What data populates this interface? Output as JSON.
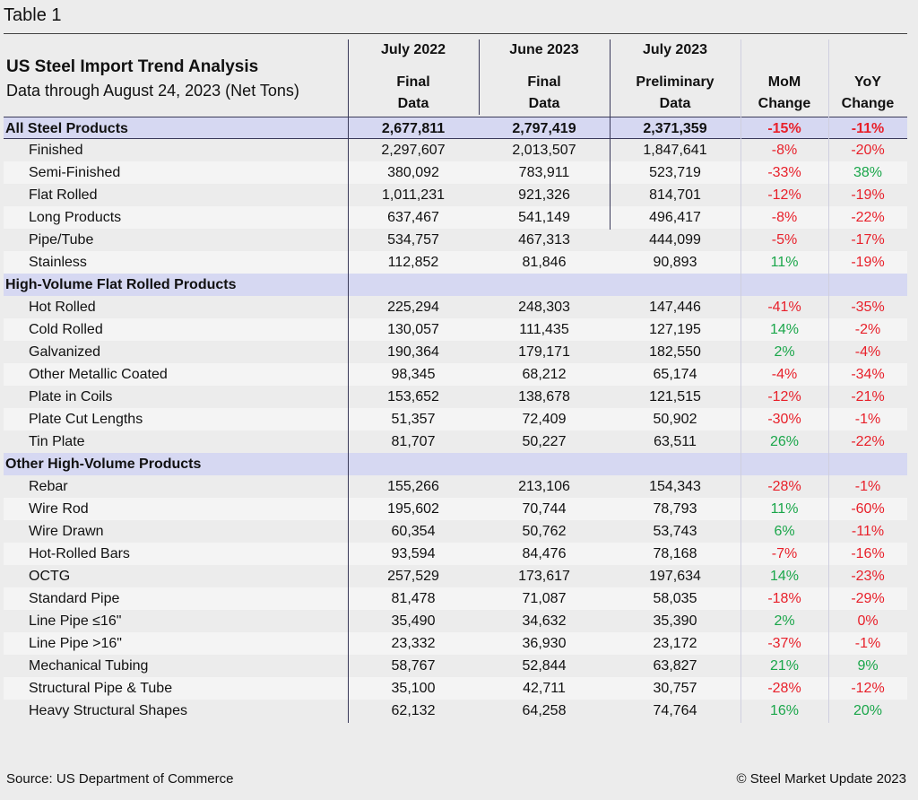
{
  "label": "Table 1",
  "title": "US Steel Import Trend Analysis",
  "subtitle": "Data through August 24, 2023 (Net Tons)",
  "headers": [
    {
      "top": "July 2022",
      "l1": "Final",
      "l2": "Data"
    },
    {
      "top": "June 2023",
      "l1": "Final",
      "l2": "Data"
    },
    {
      "top": "July 2023",
      "l1": "Preliminary",
      "l2": "Data"
    },
    {
      "top": "",
      "l1": "MoM",
      "l2": "Change"
    },
    {
      "top": "",
      "l1": "YoY",
      "l2": "Change"
    }
  ],
  "rows": [
    {
      "type": "section",
      "label": "All Steel Products",
      "v": [
        "2,677,811",
        "2,797,419",
        "2,371,359"
      ],
      "mom": "-15%",
      "yoy": "-11%"
    },
    {
      "type": "item",
      "label": "Finished",
      "v": [
        "2,297,607",
        "2,013,507",
        "1,847,641"
      ],
      "mom": "-8%",
      "yoy": "-20%"
    },
    {
      "type": "item",
      "label": "Semi-Finished",
      "v": [
        "380,092",
        "783,911",
        "523,719"
      ],
      "mom": "-33%",
      "yoy": "38%"
    },
    {
      "type": "item",
      "label": "Flat Rolled",
      "v": [
        "1,011,231",
        "921,326",
        "814,701"
      ],
      "mom": "-12%",
      "yoy": "-19%"
    },
    {
      "type": "item",
      "label": "Long Products",
      "v": [
        "637,467",
        "541,149",
        "496,417"
      ],
      "mom": "-8%",
      "yoy": "-22%"
    },
    {
      "type": "item",
      "label": "Pipe/Tube",
      "v": [
        "534,757",
        "467,313",
        "444,099"
      ],
      "mom": "-5%",
      "yoy": "-17%"
    },
    {
      "type": "item",
      "label": "Stainless",
      "v": [
        "112,852",
        "81,846",
        "90,893"
      ],
      "mom": "11%",
      "yoy": "-19%"
    },
    {
      "type": "section",
      "label": "High-Volume Flat Rolled Products",
      "v": [
        "",
        "",
        ""
      ],
      "mom": "",
      "yoy": ""
    },
    {
      "type": "item",
      "label": "Hot Rolled",
      "v": [
        "225,294",
        "248,303",
        "147,446"
      ],
      "mom": "-41%",
      "yoy": "-35%"
    },
    {
      "type": "item",
      "label": "Cold Rolled",
      "v": [
        "130,057",
        "111,435",
        "127,195"
      ],
      "mom": "14%",
      "yoy": "-2%"
    },
    {
      "type": "item",
      "label": "Galvanized",
      "v": [
        "190,364",
        "179,171",
        "182,550"
      ],
      "mom": "2%",
      "yoy": "-4%"
    },
    {
      "type": "item",
      "label": "Other Metallic Coated",
      "v": [
        "98,345",
        "68,212",
        "65,174"
      ],
      "mom": "-4%",
      "yoy": "-34%"
    },
    {
      "type": "item",
      "label": "Plate in Coils",
      "v": [
        "153,652",
        "138,678",
        "121,515"
      ],
      "mom": "-12%",
      "yoy": "-21%"
    },
    {
      "type": "item",
      "label": "Plate Cut Lengths",
      "v": [
        "51,357",
        "72,409",
        "50,902"
      ],
      "mom": "-30%",
      "yoy": "-1%"
    },
    {
      "type": "item",
      "label": "Tin Plate",
      "v": [
        "81,707",
        "50,227",
        "63,511"
      ],
      "mom": "26%",
      "yoy": "-22%"
    },
    {
      "type": "section",
      "label": "Other High-Volume Products",
      "v": [
        "",
        "",
        ""
      ],
      "mom": "",
      "yoy": ""
    },
    {
      "type": "item",
      "label": "Rebar",
      "v": [
        "155,266",
        "213,106",
        "154,343"
      ],
      "mom": "-28%",
      "yoy": "-1%"
    },
    {
      "type": "item",
      "label": "Wire Rod",
      "v": [
        "195,602",
        "70,744",
        "78,793"
      ],
      "mom": "11%",
      "yoy": "-60%"
    },
    {
      "type": "item",
      "label": "Wire Drawn",
      "v": [
        "60,354",
        "50,762",
        "53,743"
      ],
      "mom": "6%",
      "yoy": "-11%"
    },
    {
      "type": "item",
      "label": "Hot-Rolled Bars",
      "v": [
        "93,594",
        "84,476",
        "78,168"
      ],
      "mom": "-7%",
      "yoy": "-16%"
    },
    {
      "type": "item",
      "label": "OCTG",
      "v": [
        "257,529",
        "173,617",
        "197,634"
      ],
      "mom": "14%",
      "yoy": "-23%"
    },
    {
      "type": "item",
      "label": "Standard Pipe",
      "v": [
        "81,478",
        "71,087",
        "58,035"
      ],
      "mom": "-18%",
      "yoy": "-29%"
    },
    {
      "type": "item",
      "label": "Line Pipe ≤16\"",
      "v": [
        "35,490",
        "34,632",
        "35,390"
      ],
      "mom": "2%",
      "yoy": "0%"
    },
    {
      "type": "item",
      "label": "Line Pipe >16\"",
      "v": [
        "23,332",
        "36,930",
        "23,172"
      ],
      "mom": "-37%",
      "yoy": "-1%"
    },
    {
      "type": "item",
      "label": "Mechanical Tubing",
      "v": [
        "58,767",
        "52,844",
        "63,827"
      ],
      "mom": "21%",
      "yoy": "9%"
    },
    {
      "type": "item",
      "label": "Structural Pipe & Tube",
      "v": [
        "35,100",
        "42,711",
        "30,757"
      ],
      "mom": "-28%",
      "yoy": "-12%"
    },
    {
      "type": "item",
      "label": "Heavy Structural Shapes",
      "v": [
        "62,132",
        "64,258",
        "74,764"
      ],
      "mom": "16%",
      "yoy": "20%"
    }
  ],
  "footer": {
    "source": "Source: US Department of Commerce",
    "copyright": "© Steel Market Update 2023"
  },
  "colors": {
    "negative": "#e8202a",
    "positive": "#1aa64a",
    "section_bg": "#d6d8f2"
  }
}
